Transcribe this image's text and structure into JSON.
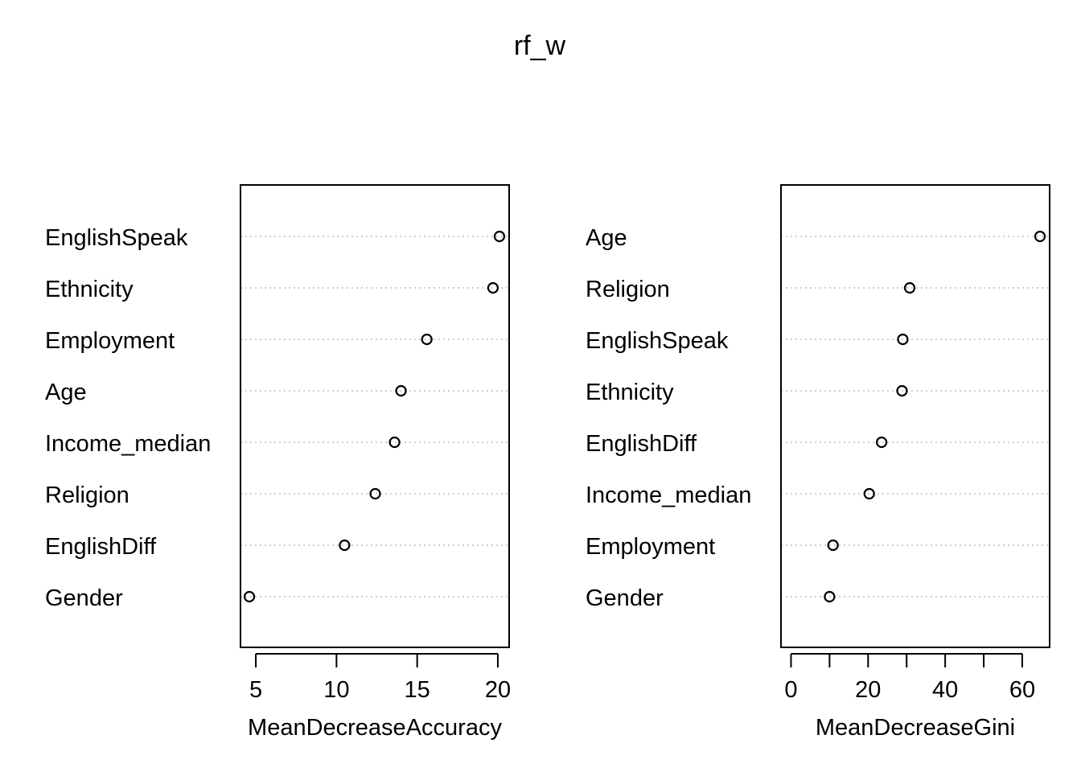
{
  "title": "rf_w",
  "chart_data": [
    {
      "type": "scatter",
      "xlabel": "MeanDecreaseAccuracy",
      "xlim": [
        4.05,
        20.7
      ],
      "xticks": [
        5,
        10,
        15,
        20
      ],
      "categories": [
        "EnglishSpeak",
        "Ethnicity",
        "Employment",
        "Age",
        "Income_median",
        "Religion",
        "EnglishDiff",
        "Gender"
      ],
      "values": [
        20.1,
        19.7,
        15.6,
        14.0,
        13.6,
        12.4,
        10.5,
        4.6
      ],
      "grid": true
    },
    {
      "type": "scatter",
      "xlabel": "MeanDecreaseGini",
      "xlim": [
        -2.6,
        67.1
      ],
      "xticks": [
        0,
        20,
        40,
        60
      ],
      "minor_ticks": [
        10,
        30,
        50
      ],
      "categories": [
        "Age",
        "Religion",
        "EnglishSpeak",
        "Ethnicity",
        "EnglishDiff",
        "Income_median",
        "Employment",
        "Gender"
      ],
      "values": [
        64.6,
        30.8,
        29.0,
        28.8,
        23.5,
        20.3,
        10.9,
        10.0
      ],
      "grid": true
    }
  ]
}
